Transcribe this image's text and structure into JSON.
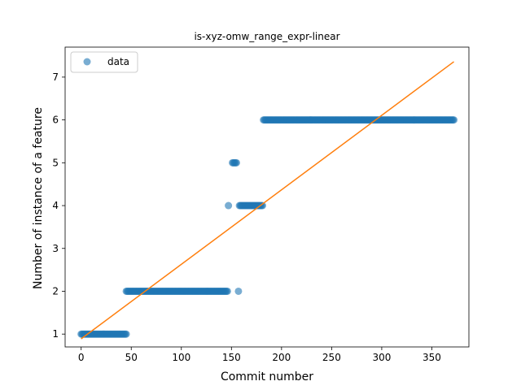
{
  "chart_data": {
    "type": "scatter",
    "title": "is-xyz-omw_range_expr-linear",
    "xlabel": "Commit number",
    "ylabel": "Number of instance of a feature",
    "xlim": [
      -16,
      387
    ],
    "ylim": [
      0.7,
      7.7
    ],
    "x_ticks": [
      0,
      50,
      100,
      150,
      200,
      250,
      300,
      350
    ],
    "y_ticks": [
      1,
      2,
      3,
      4,
      5,
      6,
      7
    ],
    "legend": {
      "entries": [
        "data"
      ],
      "placement": "upper-left"
    },
    "grid": false,
    "colors": {
      "points": "#1f77b4",
      "fit_line": "#ff7f0e"
    },
    "series": [
      {
        "name": "data",
        "kind": "points",
        "segments": [
          {
            "x_start": 0,
            "x_end": 45,
            "y": 1
          },
          {
            "x_start": 45,
            "x_end": 146,
            "y": 2
          },
          {
            "x_start": 147,
            "x_end": 147,
            "y": 4
          },
          {
            "x_start": 151,
            "x_end": 155,
            "y": 5
          },
          {
            "x_start": 157,
            "x_end": 157,
            "y": 2
          },
          {
            "x_start": 158,
            "x_end": 181,
            "y": 4
          },
          {
            "x_start": 182,
            "x_end": 372,
            "y": 6
          }
        ]
      },
      {
        "kind": "line",
        "points": [
          [
            0,
            0.89
          ],
          [
            372,
            7.36
          ]
        ]
      }
    ]
  }
}
